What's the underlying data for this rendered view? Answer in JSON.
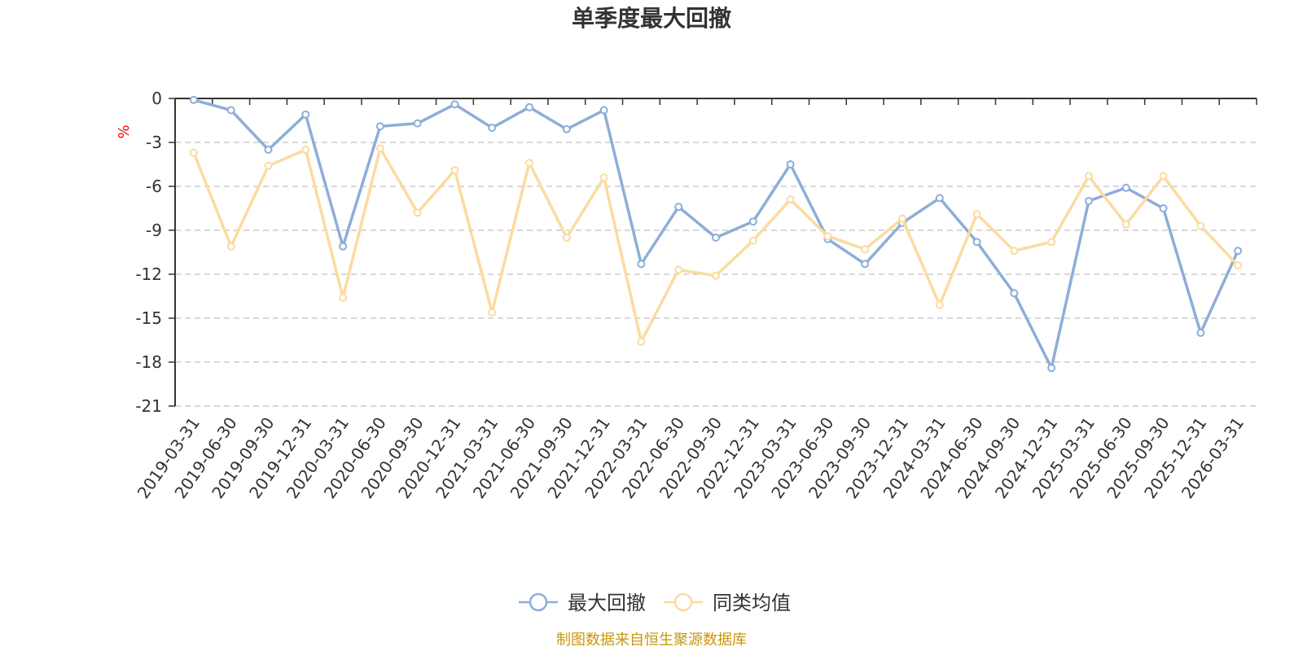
{
  "chart_data": {
    "type": "line",
    "title": "单季度最大回撤",
    "ylabel": "%",
    "ylim": [
      -21,
      0
    ],
    "yticks": [
      0,
      -3,
      -6,
      -9,
      -12,
      -15,
      -18,
      -21
    ],
    "grid": true,
    "legend_position": "bottom-center",
    "categories": [
      "2019-03-31",
      "2019-06-30",
      "2019-09-30",
      "2019-12-31",
      "2020-03-31",
      "2020-06-30",
      "2020-09-30",
      "2020-12-31",
      "2021-03-31",
      "2021-06-30",
      "2021-09-30",
      "2021-12-31",
      "2022-03-31",
      "2022-06-30",
      "2022-09-30",
      "2022-12-31",
      "2023-03-31",
      "2023-06-30",
      "2023-09-30",
      "2023-12-31",
      "2024-03-31",
      "2024-06-30",
      "2024-09-30",
      "2024-12-31",
      "2025-03-31",
      "2025-06-30",
      "2025-09-30",
      "2025-12-31",
      "2026-03-31"
    ],
    "series": [
      {
        "name": "最大回撤",
        "color": "#8eadd9",
        "values": [
          -0.1,
          -0.8,
          -3.5,
          -1.1,
          -10.1,
          -1.9,
          -1.7,
          -0.4,
          -2.0,
          -0.6,
          -2.1,
          -0.8,
          -11.3,
          -7.4,
          -9.5,
          -8.4,
          -4.5,
          -9.6,
          -11.3,
          -8.5,
          -6.8,
          -9.8,
          -13.3,
          -18.4,
          -7.0,
          -6.1,
          -7.5,
          -16.0,
          -10.4
        ]
      },
      {
        "name": "同类均值",
        "color": "#fbdb9f",
        "values": [
          -3.7,
          -10.1,
          -4.6,
          -3.5,
          -13.6,
          -3.4,
          -7.8,
          -4.9,
          -14.6,
          -4.4,
          -9.5,
          -5.4,
          -16.6,
          -11.7,
          -12.1,
          -9.7,
          -6.9,
          -9.4,
          -10.3,
          -8.2,
          -14.1,
          -7.9,
          -10.4,
          -9.8,
          -5.3,
          -8.6,
          -5.3,
          -8.7,
          -11.4
        ]
      }
    ]
  },
  "source_note": "制图数据来自恒生聚源数据库",
  "colors": {
    "axis": "#333333",
    "grid": "#cccccc",
    "ylabel": "#ff0000",
    "source": "#c8960a"
  }
}
